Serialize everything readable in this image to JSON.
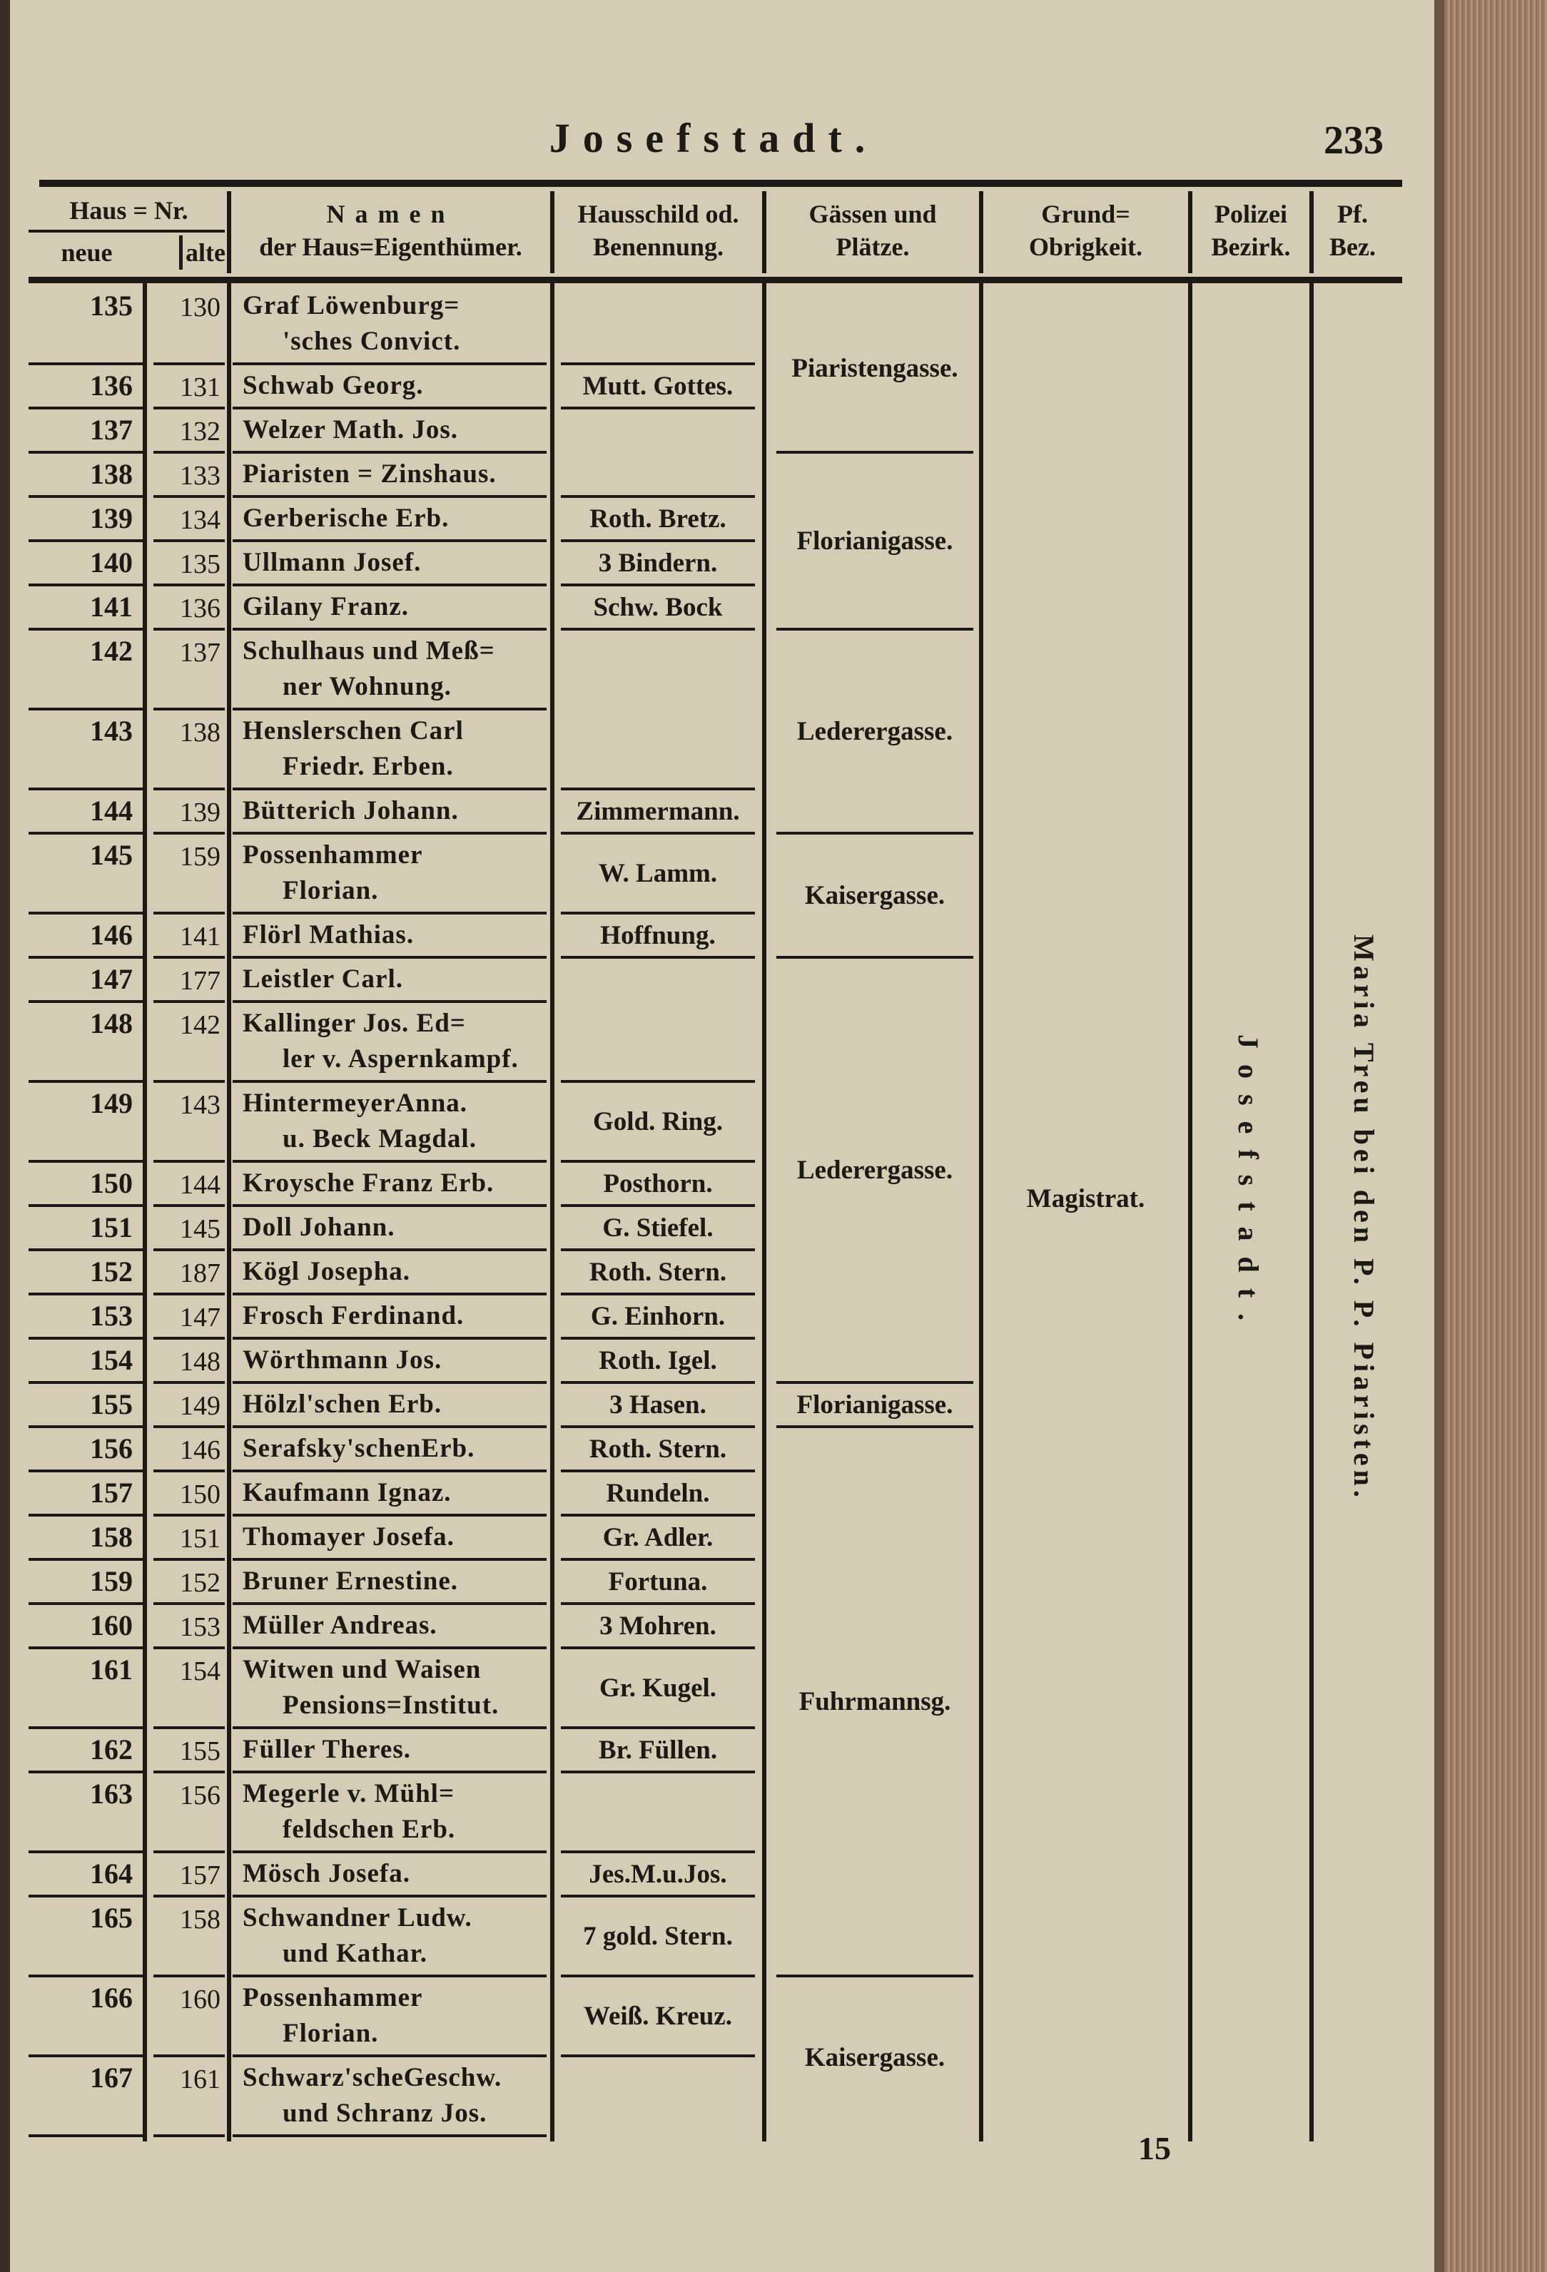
{
  "page": {
    "title": "Josefstadt.",
    "page_number": "233",
    "footer_signature": "15"
  },
  "headers": {
    "haus_nr": "Haus = Nr.",
    "neue": "neue",
    "alte": "alte",
    "namen_1": "Namen",
    "namen_2": "der Haus=Eigenthümer.",
    "schild_1": "Hausschild od.",
    "schild_2": "Benennung.",
    "gassen_1": "Gässen und",
    "gassen_2": "Plätze.",
    "grund_1": "Grund=",
    "grund_2": "Obrigkeit.",
    "polizei_1": "Polizei",
    "polizei_2": "Bezirk.",
    "pf_1": "Pf.",
    "pf_2": "Bez."
  },
  "rows": [
    {
      "neue": "135",
      "alte": "130",
      "name": [
        "Graf Löwenburg=",
        "'sches Convict."
      ]
    },
    {
      "neue": "136",
      "alte": "131",
      "name": [
        "Schwab Georg."
      ]
    },
    {
      "neue": "137",
      "alte": "132",
      "name": [
        "Welzer Math. Jos."
      ]
    },
    {
      "neue": "138",
      "alte": "133",
      "name": [
        "Piaristen = Zinshaus."
      ]
    },
    {
      "neue": "139",
      "alte": "134",
      "name": [
        "Gerberische Erb."
      ]
    },
    {
      "neue": "140",
      "alte": "135",
      "name": [
        "Ullmann Josef."
      ]
    },
    {
      "neue": "141",
      "alte": "136",
      "name": [
        "Gilany Franz."
      ]
    },
    {
      "neue": "142",
      "alte": "137",
      "name": [
        "Schulhaus und Meß=",
        "ner Wohnung."
      ]
    },
    {
      "neue": "143",
      "alte": "138",
      "name": [
        "Henslerschen Carl",
        "Friedr. Erben."
      ]
    },
    {
      "neue": "144",
      "alte": "139",
      "name": [
        "Bütterich Johann."
      ]
    },
    {
      "neue": "145",
      "alte": "159",
      "name": [
        "Possenhammer",
        "Florian."
      ]
    },
    {
      "neue": "146",
      "alte": "141",
      "name": [
        "Flörl Mathias."
      ]
    },
    {
      "neue": "147",
      "alte": "177",
      "name": [
        "Leistler Carl."
      ]
    },
    {
      "neue": "148",
      "alte": "142",
      "name": [
        "Kallinger Jos. Ed=",
        "ler v. Aspernkampf."
      ]
    },
    {
      "neue": "149",
      "alte": "143",
      "name": [
        "HintermeyerAnna.",
        "u. Beck Magdal."
      ]
    },
    {
      "neue": "150",
      "alte": "144",
      "name": [
        "Kroysche Franz Erb."
      ]
    },
    {
      "neue": "151",
      "alte": "145",
      "name": [
        "Doll Johann."
      ]
    },
    {
      "neue": "152",
      "alte": "187",
      "name": [
        "Kögl Josepha."
      ]
    },
    {
      "neue": "153",
      "alte": "147",
      "name": [
        "Frosch Ferdinand."
      ]
    },
    {
      "neue": "154",
      "alte": "148",
      "name": [
        "Wörthmann Jos."
      ]
    },
    {
      "neue": "155",
      "alte": "149",
      "name": [
        "Hölzl'schen Erb."
      ]
    },
    {
      "neue": "156",
      "alte": "146",
      "name": [
        "Serafsky'schenErb."
      ]
    },
    {
      "neue": "157",
      "alte": "150",
      "name": [
        "Kaufmann Ignaz."
      ]
    },
    {
      "neue": "158",
      "alte": "151",
      "name": [
        "Thomayer Josefa."
      ]
    },
    {
      "neue": "159",
      "alte": "152",
      "name": [
        "Bruner Ernestine."
      ]
    },
    {
      "neue": "160",
      "alte": "153",
      "name": [
        "Müller Andreas."
      ]
    },
    {
      "neue": "161",
      "alte": "154",
      "name": [
        "Witwen und Waisen",
        "Pensions=Institut."
      ]
    },
    {
      "neue": "162",
      "alte": "155",
      "name": [
        "Füller Theres."
      ]
    },
    {
      "neue": "163",
      "alte": "156",
      "name": [
        "Megerle v. Mühl=",
        "feldschen Erb."
      ]
    },
    {
      "neue": "164",
      "alte": "157",
      "name": [
        "Mösch Josefa."
      ]
    },
    {
      "neue": "165",
      "alte": "158",
      "name": [
        "Schwandner Ludw.",
        "und Kathar."
      ]
    },
    {
      "neue": "166",
      "alte": "160",
      "name": [
        "Possenhammer",
        "Florian."
      ]
    },
    {
      "neue": "167",
      "alte": "161",
      "name": [
        "Schwarz'scheGeschw.",
        "und Schranz Jos."
      ]
    }
  ],
  "schild": [
    {
      "rows": 1,
      "text": ""
    },
    {
      "rows": 1,
      "text": "Mutt. Gottes."
    },
    {
      "rows": 2,
      "text": ""
    },
    {
      "rows": 1,
      "text": "Roth. Bretz."
    },
    {
      "rows": 1,
      "text": "3 Bindern."
    },
    {
      "rows": 1,
      "text": "Schw. Bock"
    },
    {
      "rows": 2,
      "text": ""
    },
    {
      "rows": 1,
      "text": "Zimmermann."
    },
    {
      "rows": 1,
      "text": "W. Lamm."
    },
    {
      "rows": 1,
      "text": "Hoffnung."
    },
    {
      "rows": 2,
      "text": ""
    },
    {
      "rows": 1,
      "text": "Gold. Ring."
    },
    {
      "rows": 1,
      "text": "Posthorn."
    },
    {
      "rows": 1,
      "text": "G. Stiefel."
    },
    {
      "rows": 1,
      "text": "Roth. Stern."
    },
    {
      "rows": 1,
      "text": "G. Einhorn."
    },
    {
      "rows": 1,
      "text": "Roth. Igel."
    },
    {
      "rows": 1,
      "text": "3 Hasen."
    },
    {
      "rows": 1,
      "text": "Roth. Stern."
    },
    {
      "rows": 1,
      "text": "Rundeln."
    },
    {
      "rows": 1,
      "text": "Gr. Adler."
    },
    {
      "rows": 1,
      "text": "Fortuna."
    },
    {
      "rows": 1,
      "text": "3 Mohren."
    },
    {
      "rows": 1,
      "text": "Gr. Kugel."
    },
    {
      "rows": 1,
      "text": "Br. Füllen."
    },
    {
      "rows": 1,
      "text": ""
    },
    {
      "rows": 1,
      "text": "Jes.M.u.Jos."
    },
    {
      "rows": 1,
      "text": "7 gold. Stern."
    },
    {
      "rows": 1,
      "text": "Weiß. Kreuz."
    },
    {
      "rows": 1,
      "text": ""
    }
  ],
  "gassen": [
    {
      "rows": 3,
      "text": "Piaristengasse."
    },
    {
      "rows": 4,
      "text": "Florianigasse."
    },
    {
      "rows": 3,
      "text": "Lederergasse."
    },
    {
      "rows": 2,
      "text": "Kaisergasse."
    },
    {
      "rows": 8,
      "text": "Lederergasse."
    },
    {
      "rows": 1,
      "text": "Florianigasse."
    },
    {
      "rows": 10,
      "text": "Fuhrmannsg."
    },
    {
      "rows": 2,
      "text": "Kaisergasse."
    }
  ],
  "grund_obrigkeit": "Magistrat.",
  "polizei_bezirk": "Josefstadt.",
  "pfarr_bezirk": "Maria Treu bei den P. P. Piaristen."
}
